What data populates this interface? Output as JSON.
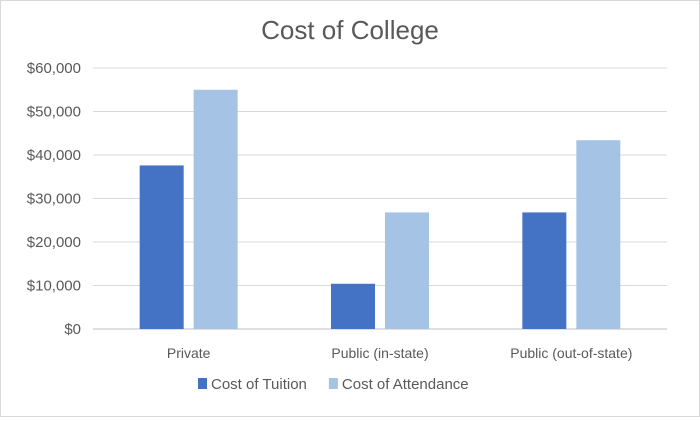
{
  "chart_data": {
    "type": "bar",
    "title": "Cost of College",
    "xlabel": "",
    "ylabel": "",
    "categories": [
      "Private",
      "Public (in-state)",
      "Public (out-of-state)"
    ],
    "series": [
      {
        "name": "Cost of Tuition",
        "values": [
          37600,
          10400,
          26800
        ],
        "color": "#4472c4"
      },
      {
        "name": "Cost of Attendance",
        "values": [
          55000,
          26800,
          43400
        ],
        "color": "#a5c3e4"
      }
    ],
    "ylim": [
      0,
      60000
    ],
    "yticks": [
      0,
      10000,
      20000,
      30000,
      40000,
      50000,
      60000
    ],
    "ytick_labels": [
      "$0",
      "$10,000",
      "$20,000",
      "$30,000",
      "$40,000",
      "$50,000",
      "$60,000"
    ],
    "grid": true,
    "gridline_color": "#d9d9d9",
    "axis_color": "#bfbfbf",
    "text_color": "#595959",
    "title_color": "#595959",
    "legend_position": "bottom"
  }
}
